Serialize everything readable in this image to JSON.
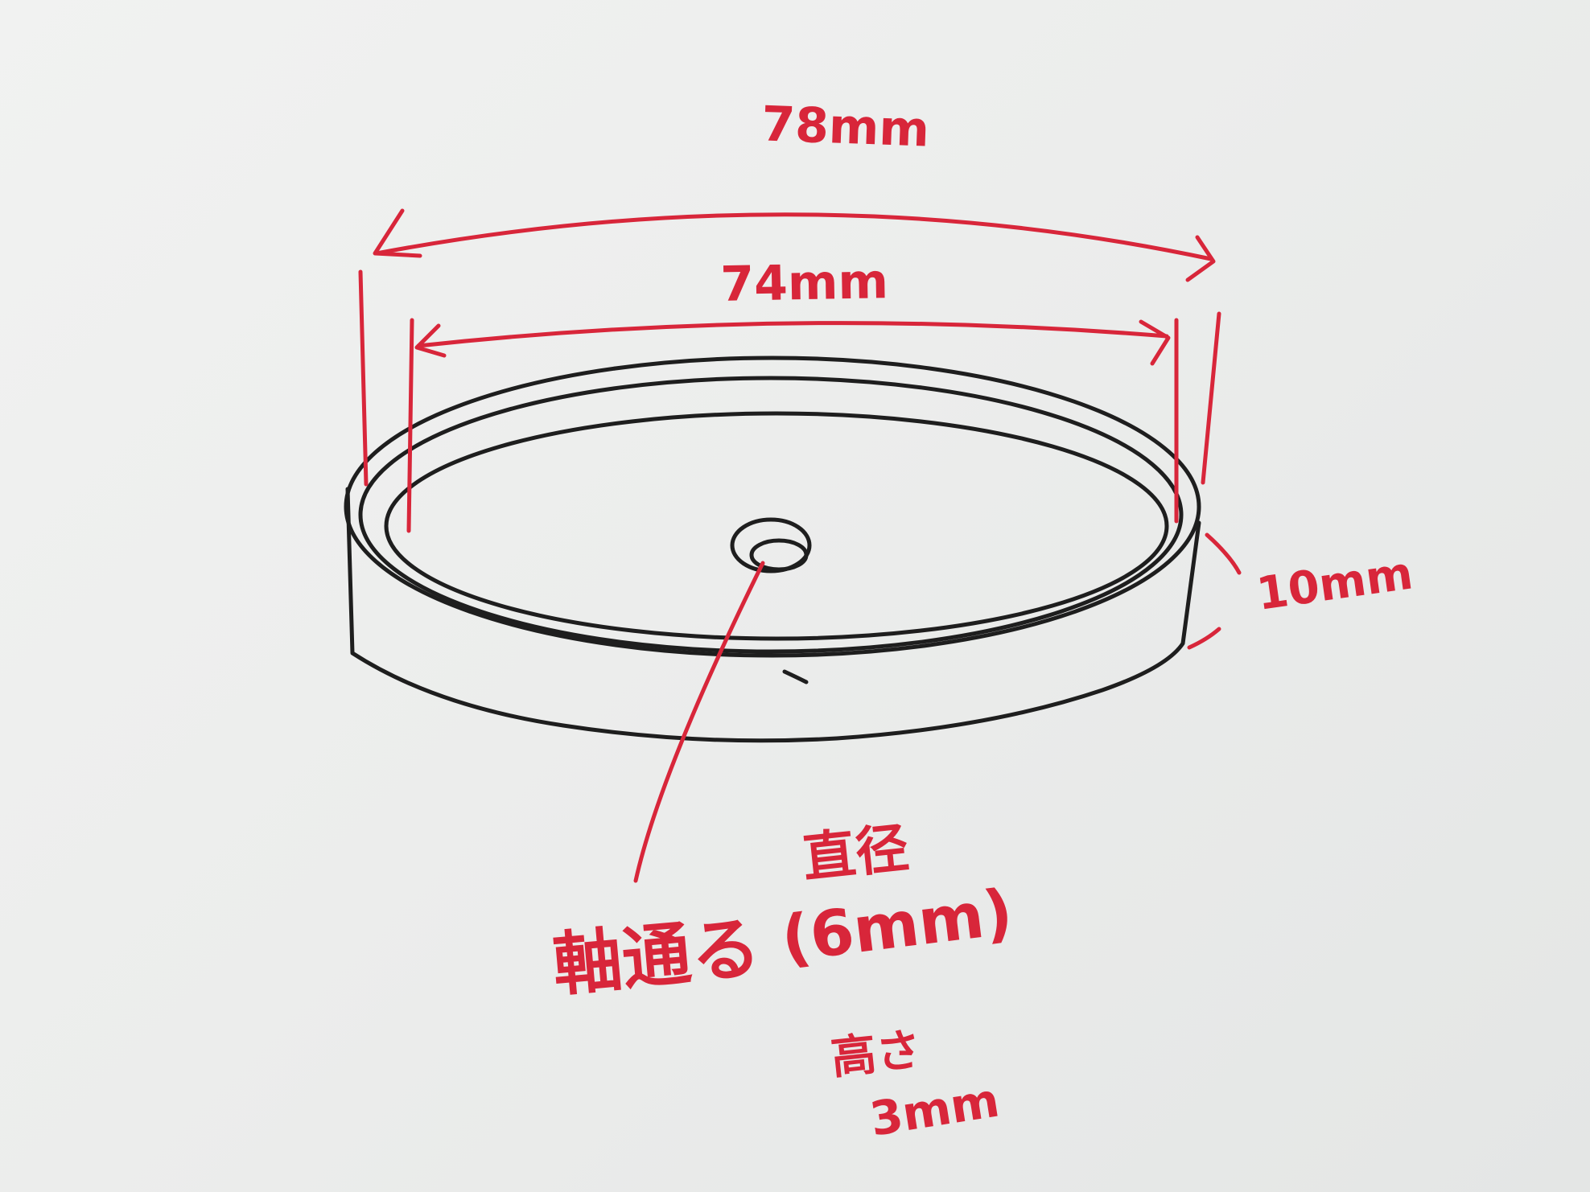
{
  "diagram": {
    "outer_diameter_label": "78mm",
    "inner_diameter_label": "74mm",
    "height_label": "10mm",
    "shaft_hole_label": "軸通る",
    "diameter_heading": "直径",
    "diameter_value": "(6mm)",
    "thickness_heading": "高さ",
    "thickness_value": "3mm"
  },
  "colors": {
    "ink_red": "#d8263a",
    "ink_black": "#1e1e1e",
    "paper": "#eeefee"
  }
}
